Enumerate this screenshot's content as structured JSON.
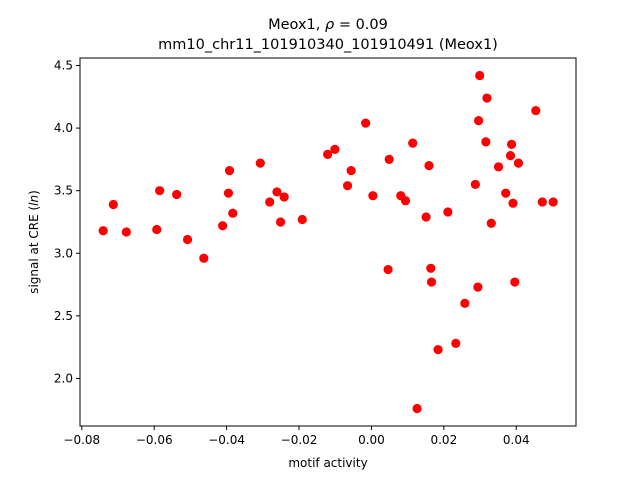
{
  "chart_data": {
    "type": "scatter",
    "title_line1_prefix": "Meox1, ",
    "title_rho_symbol": "ρ",
    "title_rho_value": " = 0.09",
    "title_line2": "mm10_chr11_101910340_101910491 (Meox1)",
    "xlabel": "motif activity",
    "ylabel_prefix": "signal at CRE (",
    "ylabel_italic": "ln",
    "ylabel_suffix": ")",
    "xlim": [
      -0.0805,
      0.0565
    ],
    "ylim": [
      1.62,
      4.56
    ],
    "xticks": [
      -0.08,
      -0.06,
      -0.04,
      -0.02,
      0.0,
      0.02,
      0.04
    ],
    "xtick_labels": [
      "−0.08",
      "−0.06",
      "−0.04",
      "−0.02",
      "0.00",
      "0.02",
      "0.04"
    ],
    "yticks": [
      2.0,
      2.5,
      3.0,
      3.5,
      4.0,
      4.5
    ],
    "ytick_labels": [
      "2.0",
      "2.5",
      "3.0",
      "3.5",
      "4.0",
      "4.5"
    ],
    "grid": false,
    "marker_color": "#ff0000",
    "points": [
      {
        "x": -0.0741,
        "y": 3.18
      },
      {
        "x": -0.0713,
        "y": 3.39
      },
      {
        "x": -0.0677,
        "y": 3.17
      },
      {
        "x": -0.0593,
        "y": 3.19
      },
      {
        "x": -0.0585,
        "y": 3.5
      },
      {
        "x": -0.0538,
        "y": 3.47
      },
      {
        "x": -0.0508,
        "y": 3.11
      },
      {
        "x": -0.0463,
        "y": 2.96
      },
      {
        "x": -0.0411,
        "y": 3.22
      },
      {
        "x": -0.0395,
        "y": 3.48
      },
      {
        "x": -0.0392,
        "y": 3.66
      },
      {
        "x": -0.0383,
        "y": 3.32
      },
      {
        "x": -0.0307,
        "y": 3.72
      },
      {
        "x": -0.0281,
        "y": 3.41
      },
      {
        "x": -0.0261,
        "y": 3.49
      },
      {
        "x": -0.0251,
        "y": 3.25
      },
      {
        "x": -0.0241,
        "y": 3.45
      },
      {
        "x": -0.0191,
        "y": 3.27
      },
      {
        "x": -0.0121,
        "y": 3.79
      },
      {
        "x": -0.0101,
        "y": 3.83
      },
      {
        "x": -0.0066,
        "y": 3.54
      },
      {
        "x": -0.0056,
        "y": 3.66
      },
      {
        "x": -0.0016,
        "y": 4.04
      },
      {
        "x": 0.0004,
        "y": 3.46
      },
      {
        "x": 0.0046,
        "y": 2.87
      },
      {
        "x": 0.0049,
        "y": 3.75
      },
      {
        "x": 0.0081,
        "y": 3.46
      },
      {
        "x": 0.0094,
        "y": 3.42
      },
      {
        "x": 0.0114,
        "y": 3.88
      },
      {
        "x": 0.0126,
        "y": 1.76
      },
      {
        "x": 0.0151,
        "y": 3.29
      },
      {
        "x": 0.0159,
        "y": 3.7
      },
      {
        "x": 0.0164,
        "y": 2.88
      },
      {
        "x": 0.0166,
        "y": 2.77
      },
      {
        "x": 0.0184,
        "y": 2.23
      },
      {
        "x": 0.0211,
        "y": 3.33
      },
      {
        "x": 0.0233,
        "y": 2.28
      },
      {
        "x": 0.0258,
        "y": 2.6
      },
      {
        "x": 0.0287,
        "y": 3.55
      },
      {
        "x": 0.0294,
        "y": 2.73
      },
      {
        "x": 0.0296,
        "y": 4.06
      },
      {
        "x": 0.0299,
        "y": 4.42
      },
      {
        "x": 0.0316,
        "y": 3.89
      },
      {
        "x": 0.0319,
        "y": 4.24
      },
      {
        "x": 0.0331,
        "y": 3.24
      },
      {
        "x": 0.0351,
        "y": 3.69
      },
      {
        "x": 0.0371,
        "y": 3.48
      },
      {
        "x": 0.0384,
        "y": 3.78
      },
      {
        "x": 0.0387,
        "y": 3.87
      },
      {
        "x": 0.0391,
        "y": 3.4
      },
      {
        "x": 0.0396,
        "y": 2.77
      },
      {
        "x": 0.0406,
        "y": 3.72
      },
      {
        "x": 0.0454,
        "y": 4.14
      },
      {
        "x": 0.0472,
        "y": 3.41
      },
      {
        "x": 0.0502,
        "y": 3.41
      }
    ]
  }
}
